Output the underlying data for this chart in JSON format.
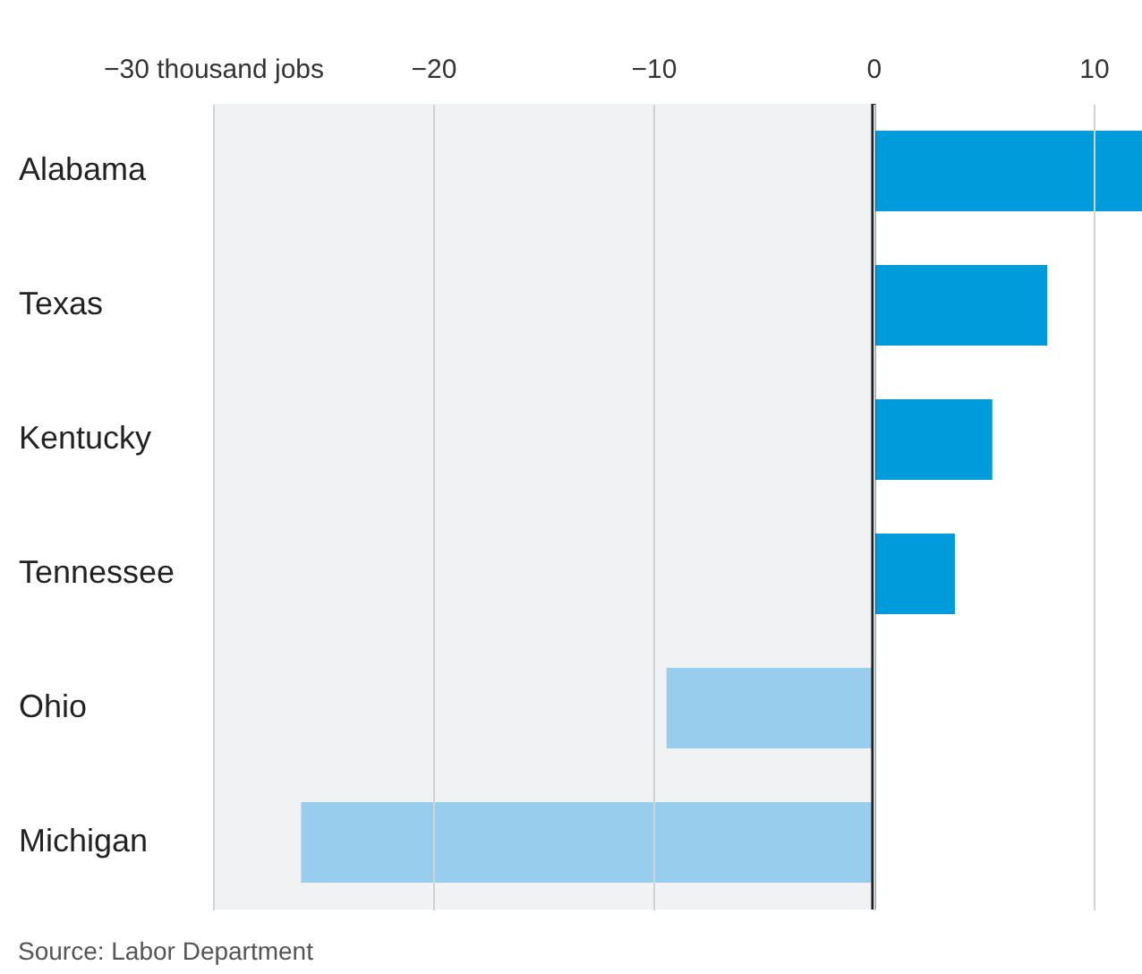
{
  "chart_data": {
    "type": "bar",
    "orientation": "horizontal",
    "categories": [
      "Alabama",
      "Texas",
      "Kentucky",
      "Tennessee",
      "Ohio",
      "Michigan"
    ],
    "values": [
      12.2,
      7.9,
      5.4,
      3.7,
      -9.4,
      -26.0
    ],
    "colors": [
      "#009bdb",
      "#009bdb",
      "#009bdb",
      "#009bdb",
      "#99cdee",
      "#99cdee"
    ],
    "xlim": [
      -30,
      12.2
    ],
    "xticks": [
      {
        "value": -30,
        "label": "−30 thousand jobs"
      },
      {
        "value": -20,
        "label": "−20"
      },
      {
        "value": -10,
        "label": "−10"
      },
      0,
      10
    ],
    "grid": "x",
    "bands": [
      {
        "axis": "x",
        "from": -30,
        "to": 0,
        "color": "#f1f2f4"
      }
    ],
    "ref_lines": [
      {
        "axis": "x",
        "value": 0,
        "color": "#1d2228"
      }
    ],
    "annotations": [
      "Source: Labor Department"
    ]
  }
}
